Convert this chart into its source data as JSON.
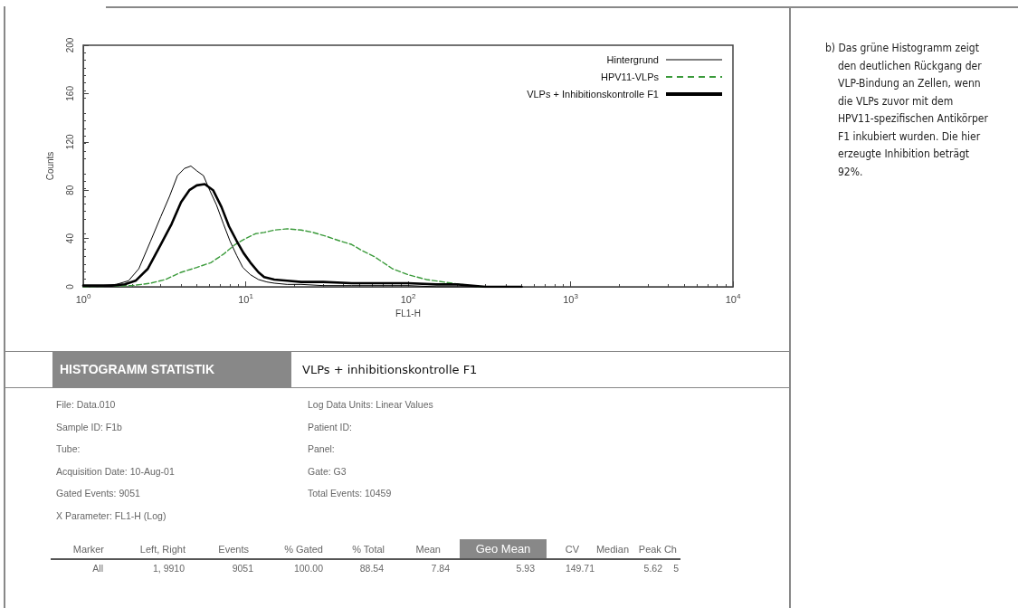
{
  "chart_data": {
    "type": "line",
    "xlabel": "FL1-H",
    "ylabel": "Counts",
    "log": "x",
    "xlim": [
      1,
      10000
    ],
    "xticks": [
      {
        "value": 1,
        "label": "10$^{0}$"
      },
      {
        "value": 10,
        "label": "10$^{1}$"
      },
      {
        "value": 100,
        "label": "10$^{2}$"
      },
      {
        "value": 1000,
        "label": "10$^{3}$"
      },
      {
        "value": 10000,
        "label": "10$^{4}$"
      }
    ],
    "ylim": [
      0,
      200
    ],
    "yticks": [
      0,
      40,
      80,
      120,
      160,
      200
    ],
    "grid": false,
    "legend": "top right",
    "marker": "none",
    "series": [
      {
        "name": "Hintergrund",
        "color": "#000000",
        "line_style": "solid",
        "x": [
          1,
          1.3,
          1.6,
          1.9,
          2.2,
          2.6,
          3.0,
          3.4,
          3.8,
          4.2,
          4.6,
          5.0,
          5.5,
          6.0,
          6.6,
          7.3,
          8.0,
          8.8,
          9.6,
          10.7,
          12,
          13.5,
          15,
          18,
          22,
          30,
          45,
          70,
          100,
          150,
          200,
          300
        ],
        "values": [
          1,
          1,
          2,
          5,
          15,
          38,
          58,
          75,
          92,
          98,
          100,
          96,
          92,
          80,
          68,
          52,
          38,
          26,
          16,
          10,
          6,
          4,
          3,
          2,
          2,
          1,
          1,
          1,
          1,
          0,
          0,
          0
        ]
      },
      {
        "name": "HPV11-VLPs",
        "color": "#3a9a3a",
        "line_style": "dashed",
        "x": [
          1,
          2,
          2.6,
          3.2,
          4,
          5,
          6.1,
          7.3,
          8.6,
          10,
          11.5,
          13,
          15,
          18,
          22,
          26,
          31,
          38,
          45,
          52,
          62,
          80,
          100,
          130,
          186,
          275,
          400
        ],
        "values": [
          0,
          1,
          3,
          6,
          12,
          16,
          20,
          27,
          35,
          40,
          44,
          45,
          47,
          48,
          47,
          45,
          42,
          38,
          35,
          30,
          25,
          15,
          10,
          6,
          3,
          0,
          0
        ]
      },
      {
        "name": "VLPs + Inhibitionskontrolle F1",
        "color": "#000000",
        "line_style": "solid",
        "x": [
          1,
          1.5,
          1.8,
          2.1,
          2.5,
          3.0,
          3.5,
          4.0,
          4.5,
          5.0,
          5.6,
          6.3,
          7.1,
          7.9,
          8.8,
          9.7,
          10.7,
          12,
          13,
          15,
          18,
          22,
          30,
          45,
          70,
          100,
          150,
          200,
          300,
          500
        ],
        "values": [
          1,
          1,
          2,
          5,
          15,
          35,
          52,
          70,
          80,
          84,
          85,
          80,
          66,
          50,
          38,
          28,
          20,
          12,
          8,
          6,
          5,
          4,
          4,
          3,
          3,
          3,
          2,
          2,
          0,
          0
        ]
      }
    ],
    "annotations": [
      "b) Das grüne Histogramm zeigt den deutlichen Rückgang der VLP-Bindung an Zellen, wenn die VLPs zuvor mit dem HPV11-spezifischen Antikörper F1 inkubiert wurden. Die hier erzeugte Inhibition beträgt 92%.",
      "HISTOGRAMM STATISTIK",
      "VLPs + inhibitionskontrolle F1",
      "File: Data.010",
      "Sample ID: F1b",
      "Tube:",
      "Acquisition Date: 10-Aug-01",
      "Gated Events: 9051",
      "X Parameter: FL1-H (Log)",
      "Log Data Units: Linear Values",
      "Patient ID:",
      "Panel:",
      "Gate: G3",
      "Total Events: 10459",
      "Marker",
      "Left, Right",
      "Events",
      "% Gated",
      "% Total",
      "Mean",
      "Geo Mean",
      "CV",
      "Median",
      "Peak Ch",
      "All",
      "1, 9910",
      "9051",
      "100.00",
      "88.54",
      "7.84",
      "5.93",
      "149.71",
      "5.62",
      "5"
    ]
  }
}
